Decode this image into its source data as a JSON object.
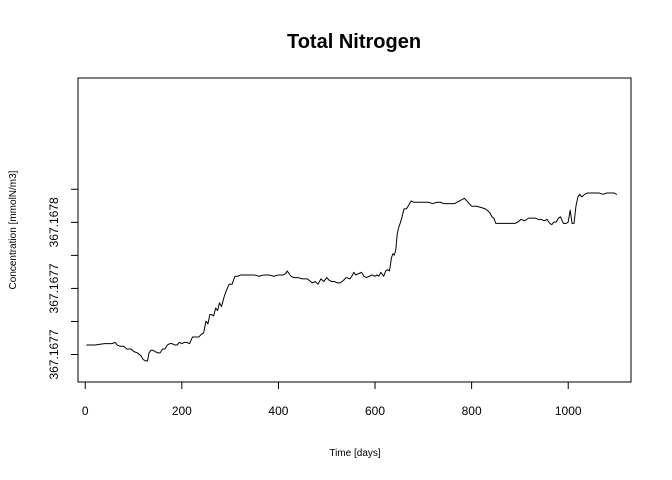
{
  "chart_data": {
    "type": "line",
    "title": "Total Nitrogen",
    "xlabel": "Time [days]",
    "ylabel": "Concentration [mmolN/m3]",
    "xlim": [
      -15,
      1130
    ],
    "ylim": [
      367.16765,
      367.16788
    ],
    "x_ticks": [
      {
        "value": 0,
        "label": "0"
      },
      {
        "value": 200,
        "label": "200"
      },
      {
        "value": 400,
        "label": "400"
      },
      {
        "value": 600,
        "label": "600"
      },
      {
        "value": 800,
        "label": "800"
      },
      {
        "value": 1000,
        "label": "1000"
      }
    ],
    "y_ticks": [
      {
        "value": 367.1676708,
        "label": "367.1677"
      },
      {
        "value": 367.1676958,
        "label": ""
      },
      {
        "value": 367.1677208,
        "label": "367.1677"
      },
      {
        "value": 367.1677458,
        "label": ""
      },
      {
        "value": 367.1677708,
        "label": "367.1678"
      },
      {
        "value": 367.1677958,
        "label": ""
      }
    ],
    "grid": false,
    "series": [
      {
        "color": "#000000",
        "points": [
          [
            3,
            367.167678
          ],
          [
            20,
            367.167678
          ],
          [
            40,
            367.167679
          ],
          [
            55,
            367.167679
          ],
          [
            62,
            367.16768
          ],
          [
            66,
            367.167678
          ],
          [
            72,
            367.167677
          ],
          [
            80,
            367.167677
          ],
          [
            86,
            367.167675
          ],
          [
            95,
            367.167675
          ],
          [
            101,
            367.167673
          ],
          [
            108,
            367.167672
          ],
          [
            115,
            367.16767
          ],
          [
            120,
            367.167667
          ],
          [
            125,
            367.167666
          ],
          [
            129,
            367.167666
          ],
          [
            132,
            367.167672
          ],
          [
            136,
            367.167674
          ],
          [
            140,
            367.167674
          ],
          [
            145,
            367.167673
          ],
          [
            150,
            367.167672
          ],
          [
            155,
            367.167672
          ],
          [
            160,
            367.167675
          ],
          [
            165,
            367.167675
          ],
          [
            170,
            367.167678
          ],
          [
            175,
            367.167679
          ],
          [
            180,
            367.167679
          ],
          [
            185,
            367.167678
          ],
          [
            190,
            367.167678
          ],
          [
            195,
            367.16768
          ],
          [
            200,
            367.167679
          ],
          [
            205,
            367.16768
          ],
          [
            210,
            367.16768
          ],
          [
            216,
            367.167679
          ],
          [
            222,
            367.167684
          ],
          [
            228,
            367.167684
          ],
          [
            235,
            367.167684
          ],
          [
            240,
            367.167686
          ],
          [
            245,
            367.167687
          ],
          [
            250,
            367.167696
          ],
          [
            254,
            367.167694
          ],
          [
            258,
            367.167701
          ],
          [
            262,
            367.167701
          ],
          [
            266,
            367.1677
          ],
          [
            270,
            367.167706
          ],
          [
            274,
            367.167704
          ],
          [
            278,
            367.16771
          ],
          [
            282,
            367.167707
          ],
          [
            288,
            367.167715
          ],
          [
            292,
            367.167719
          ],
          [
            298,
            367.167724
          ],
          [
            304,
            367.167724
          ],
          [
            310,
            367.16773
          ],
          [
            316,
            367.16773
          ],
          [
            322,
            367.167731
          ],
          [
            330,
            367.167731
          ],
          [
            340,
            367.167731
          ],
          [
            350,
            367.167731
          ],
          [
            360,
            367.16773
          ],
          [
            370,
            367.167731
          ],
          [
            380,
            367.167731
          ],
          [
            390,
            367.16773
          ],
          [
            400,
            367.167731
          ],
          [
            410,
            367.167731
          ],
          [
            415,
            367.167732
          ],
          [
            418,
            367.167734
          ],
          [
            422,
            367.167732
          ],
          [
            426,
            367.16773
          ],
          [
            432,
            367.167729
          ],
          [
            440,
            367.167729
          ],
          [
            450,
            367.167728
          ],
          [
            460,
            367.167728
          ],
          [
            470,
            367.167725
          ],
          [
            476,
            367.167726
          ],
          [
            482,
            367.167724
          ],
          [
            488,
            367.167728
          ],
          [
            494,
            367.167726
          ],
          [
            500,
            367.167729
          ],
          [
            505,
            367.167727
          ],
          [
            510,
            367.167726
          ],
          [
            516,
            367.167726
          ],
          [
            522,
            367.167725
          ],
          [
            528,
            367.167725
          ],
          [
            535,
            367.167727
          ],
          [
            540,
            367.167729
          ],
          [
            548,
            367.167728
          ],
          [
            552,
            367.16773
          ],
          [
            556,
            367.167733
          ],
          [
            560,
            367.167731
          ],
          [
            566,
            367.167732
          ],
          [
            572,
            367.167733
          ],
          [
            577,
            367.16773
          ],
          [
            582,
            367.167729
          ],
          [
            588,
            367.16773
          ],
          [
            594,
            367.167731
          ],
          [
            600,
            367.16773
          ],
          [
            604,
            367.167731
          ],
          [
            608,
            367.16773
          ],
          [
            612,
            367.167733
          ],
          [
            618,
            367.16773
          ],
          [
            622,
            367.167734
          ],
          [
            626,
            367.167735
          ],
          [
            630,
            367.167734
          ],
          [
            634,
            367.167744
          ],
          [
            637,
            367.167747
          ],
          [
            640,
            367.167746
          ],
          [
            643,
            367.16775
          ],
          [
            646,
            367.167762
          ],
          [
            649,
            367.167767
          ],
          [
            652,
            367.16777
          ],
          [
            656,
            367.167775
          ],
          [
            660,
            367.167781
          ],
          [
            665,
            367.167781
          ],
          [
            670,
            367.167784
          ],
          [
            675,
            367.167787
          ],
          [
            680,
            367.167786
          ],
          [
            690,
            367.167786
          ],
          [
            700,
            367.167786
          ],
          [
            710,
            367.167786
          ],
          [
            720,
            367.167785
          ],
          [
            728,
            367.167786
          ],
          [
            735,
            367.167786
          ],
          [
            742,
            367.167785
          ],
          [
            750,
            367.167785
          ],
          [
            756,
            367.167785
          ],
          [
            760,
            367.167785
          ],
          [
            765,
            367.167785
          ],
          [
            770,
            367.167786
          ],
          [
            775,
            367.167787
          ],
          [
            780,
            367.167788
          ],
          [
            785,
            367.167789
          ],
          [
            790,
            367.167787
          ],
          [
            795,
            367.167785
          ],
          [
            800,
            367.167783
          ],
          [
            810,
            367.167783
          ],
          [
            820,
            367.167782
          ],
          [
            828,
            367.167781
          ],
          [
            832,
            367.16778
          ],
          [
            838,
            367.167778
          ],
          [
            842,
            367.167775
          ],
          [
            846,
            367.167774
          ],
          [
            850,
            367.16777
          ],
          [
            855,
            367.16777
          ],
          [
            860,
            367.16777
          ],
          [
            866,
            367.16777
          ],
          [
            872,
            367.16777
          ],
          [
            878,
            367.16777
          ],
          [
            884,
            367.16777
          ],
          [
            890,
            367.16777
          ],
          [
            896,
            367.167771
          ],
          [
            902,
            367.167773
          ],
          [
            910,
            367.167772
          ],
          [
            918,
            367.167774
          ],
          [
            926,
            367.167774
          ],
          [
            932,
            367.167774
          ],
          [
            938,
            367.167773
          ],
          [
            944,
            367.167773
          ],
          [
            950,
            367.167772
          ],
          [
            956,
            367.167773
          ],
          [
            962,
            367.16777
          ],
          [
            966,
            367.167769
          ],
          [
            970,
            367.167771
          ],
          [
            975,
            367.167771
          ],
          [
            980,
            367.167774
          ],
          [
            984,
            367.167775
          ],
          [
            990,
            367.16777
          ],
          [
            996,
            367.16777
          ],
          [
            1000,
            367.167771
          ],
          [
            1004,
            367.16778
          ],
          [
            1008,
            367.16777
          ],
          [
            1012,
            367.16777
          ],
          [
            1016,
            367.167783
          ],
          [
            1020,
            367.16779
          ],
          [
            1024,
            367.167792
          ],
          [
            1028,
            367.16779
          ],
          [
            1034,
            367.167792
          ],
          [
            1040,
            367.167793
          ],
          [
            1048,
            367.167793
          ],
          [
            1056,
            367.167793
          ],
          [
            1064,
            367.167793
          ],
          [
            1072,
            367.167792
          ],
          [
            1080,
            367.167793
          ],
          [
            1088,
            367.167793
          ],
          [
            1095,
            367.167793
          ],
          [
            1100,
            367.167792
          ]
        ]
      }
    ]
  }
}
